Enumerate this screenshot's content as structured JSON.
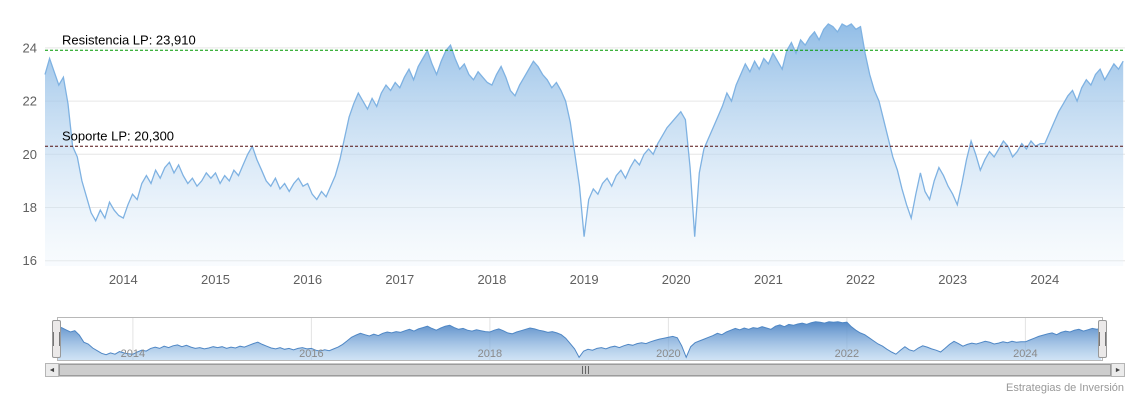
{
  "credits": "Estrategias de Inversión",
  "scrollbar": {
    "left_arrow": "◄",
    "right_arrow": "►"
  },
  "chart_data": {
    "type": "area",
    "title": "",
    "xlabel": "",
    "ylabel": "",
    "grid": true,
    "xlim": [
      2013.15,
      2024.87
    ],
    "ylim": [
      15.8,
      25.5
    ],
    "yticks": [
      16,
      18,
      20,
      22,
      24
    ],
    "xticks": [
      2014,
      2015,
      2016,
      2017,
      2018,
      2019,
      2020,
      2021,
      2022,
      2023,
      2024
    ],
    "plot_lines": [
      {
        "id": "resistance",
        "label": "Resistencia LP: 23,910",
        "value": 23.91,
        "color": "#009900"
      },
      {
        "id": "support",
        "label": "Soporte LP: 20,300",
        "value": 20.3,
        "color": "#551111"
      }
    ],
    "colors": {
      "line": "#7fb2e2",
      "area_top": "rgba(127,178,226,0.85)",
      "area_bottom": "rgba(233,243,251,0.3)",
      "grid": "#e6e6e6",
      "tick_label": "#606060",
      "plotline_label": "#000000",
      "nav_line": "#4f87c5",
      "nav_area_top": "rgba(77,132,196,0.95)",
      "nav_area_bottom": "rgba(168,203,236,0.55)",
      "nav_label": "#8a8a8a",
      "nav_border": "#b8b8b8",
      "nav_grid": "#e3e3e3"
    },
    "navigator": {
      "years": [
        2014,
        2016,
        2018,
        2020,
        2022,
        2024
      ],
      "ylim": [
        16.3,
        25.3
      ]
    },
    "series": [
      {
        "x_start": 2013.15,
        "x_step": 0.05,
        "values": [
          23.0,
          23.6,
          23.1,
          22.6,
          22.9,
          21.9,
          20.3,
          19.9,
          19.0,
          18.4,
          17.8,
          17.5,
          17.9,
          17.6,
          18.2,
          17.9,
          17.7,
          17.6,
          18.1,
          18.5,
          18.3,
          18.9,
          19.2,
          18.9,
          19.4,
          19.1,
          19.5,
          19.7,
          19.3,
          19.6,
          19.2,
          18.9,
          19.1,
          18.8,
          19.0,
          19.3,
          19.1,
          19.3,
          18.9,
          19.2,
          19.0,
          19.4,
          19.2,
          19.6,
          20.0,
          20.3,
          19.8,
          19.4,
          19.0,
          18.8,
          19.1,
          18.7,
          18.9,
          18.6,
          18.9,
          19.1,
          18.8,
          18.9,
          18.5,
          18.3,
          18.6,
          18.4,
          18.8,
          19.2,
          19.8,
          20.6,
          21.4,
          21.9,
          22.3,
          22.0,
          21.7,
          22.1,
          21.8,
          22.3,
          22.6,
          22.4,
          22.7,
          22.5,
          22.9,
          23.2,
          22.8,
          23.3,
          23.6,
          23.9,
          23.4,
          23.0,
          23.5,
          23.9,
          24.1,
          23.6,
          23.2,
          23.4,
          23.0,
          22.8,
          23.1,
          22.9,
          22.7,
          22.6,
          23.0,
          23.3,
          22.9,
          22.4,
          22.2,
          22.6,
          22.9,
          23.2,
          23.5,
          23.3,
          23.0,
          22.8,
          22.5,
          22.7,
          22.4,
          22.0,
          21.2,
          20.0,
          18.8,
          16.9,
          18.3,
          18.7,
          18.5,
          18.9,
          19.1,
          18.8,
          19.2,
          19.4,
          19.1,
          19.5,
          19.8,
          19.6,
          20.0,
          20.2,
          20.0,
          20.4,
          20.7,
          21.0,
          21.2,
          21.4,
          21.6,
          21.3,
          19.5,
          16.9,
          19.3,
          20.2,
          20.6,
          21.0,
          21.4,
          21.8,
          22.3,
          22.0,
          22.6,
          23.0,
          23.4,
          23.1,
          23.5,
          23.2,
          23.6,
          23.4,
          23.8,
          23.5,
          23.2,
          23.9,
          24.2,
          23.8,
          24.3,
          24.1,
          24.4,
          24.6,
          24.3,
          24.7,
          24.9,
          24.8,
          24.6,
          24.9,
          24.8,
          24.9,
          24.7,
          24.8,
          23.8,
          23.0,
          22.4,
          22.0,
          21.3,
          20.6,
          19.9,
          19.4,
          18.7,
          18.1,
          17.6,
          18.5,
          19.3,
          18.6,
          18.3,
          19.0,
          19.5,
          19.2,
          18.8,
          18.5,
          18.1,
          18.9,
          19.8,
          20.5,
          20.0,
          19.4,
          19.8,
          20.1,
          19.9,
          20.2,
          20.5,
          20.3,
          19.9,
          20.1,
          20.4,
          20.2,
          20.5,
          20.3,
          20.4,
          20.4,
          20.8,
          21.2,
          21.6,
          21.9,
          22.2,
          22.4,
          22.0,
          22.5,
          22.8,
          22.6,
          23.0,
          23.2,
          22.8,
          23.1,
          23.4,
          23.2,
          23.5
        ]
      }
    ]
  }
}
